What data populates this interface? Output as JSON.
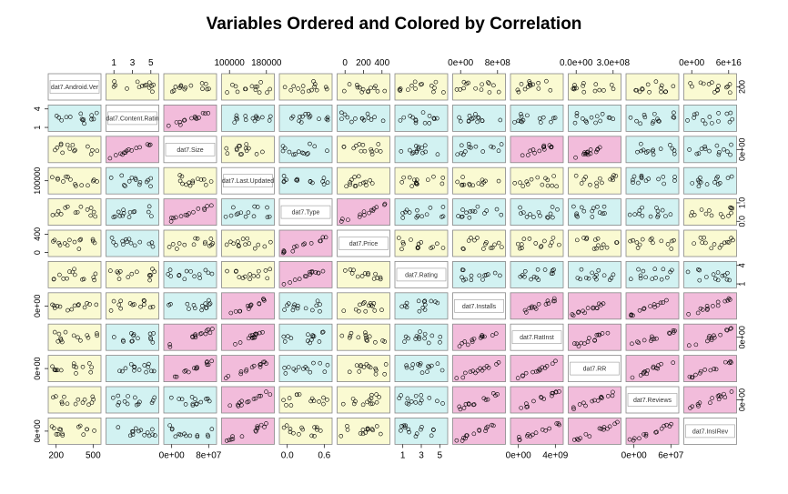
{
  "chart_data": {
    "type": "scatter",
    "subtype": "scatterplot-matrix",
    "title": "Variables Ordered and Colored by Correlation",
    "variables": [
      "dat7.Android.Ver",
      "dat7.Content.Ratin",
      "dat7.Size",
      "dat7.Last.Updated",
      "dat7.Type",
      "dat7.Price",
      "dat7.Rating",
      "dat7.Installs",
      "dat7.RatInst",
      "dat7.RR",
      "dat7.Reviews",
      "dat7.InsIRev"
    ],
    "colors": {
      "high": "#F2BCDB",
      "medium": "#D2F2F2",
      "low": "#FAFAD2"
    },
    "panel_colors": [
      [
        "diag",
        "low",
        "low",
        "low",
        "low",
        "low",
        "low",
        "low",
        "low",
        "low",
        "low",
        "low"
      ],
      [
        "medium",
        "diag",
        "high",
        "medium",
        "medium",
        "medium",
        "medium",
        "medium",
        "medium",
        "medium",
        "medium",
        "medium"
      ],
      [
        "low",
        "high",
        "diag",
        "low",
        "medium",
        "low",
        "medium",
        "medium",
        "high",
        "high",
        "medium",
        "medium"
      ],
      [
        "low",
        "medium",
        "low",
        "diag",
        "medium",
        "low",
        "low",
        "low",
        "low",
        "low",
        "medium",
        "medium"
      ],
      [
        "low",
        "medium",
        "high",
        "medium",
        "diag",
        "high",
        "medium",
        "medium",
        "medium",
        "medium",
        "medium",
        "low"
      ],
      [
        "low",
        "medium",
        "low",
        "low",
        "high",
        "diag",
        "low",
        "low",
        "low",
        "low",
        "low",
        "low"
      ],
      [
        "low",
        "low",
        "medium",
        "low",
        "high",
        "low",
        "diag",
        "medium",
        "medium",
        "medium",
        "medium",
        "medium"
      ],
      [
        "low",
        "low",
        "medium",
        "high",
        "medium",
        "low",
        "medium",
        "diag",
        "high",
        "high",
        "high",
        "high"
      ],
      [
        "low",
        "medium",
        "high",
        "high",
        "medium",
        "low",
        "medium",
        "high",
        "diag",
        "high",
        "high",
        "high"
      ],
      [
        "low",
        "medium",
        "high",
        "high",
        "medium",
        "low",
        "medium",
        "high",
        "high",
        "diag",
        "high",
        "high"
      ],
      [
        "low",
        "medium",
        "medium",
        "high",
        "low",
        "low",
        "medium",
        "high",
        "high",
        "high",
        "diag",
        "high"
      ],
      [
        "low",
        "medium",
        "medium",
        "high",
        "low",
        "low",
        "medium",
        "high",
        "high",
        "high",
        "high",
        "diag"
      ]
    ],
    "top_axis": [
      {
        "column": 1,
        "ticks": [
          "1",
          "3",
          "5"
        ]
      },
      {
        "column": 3,
        "ticks": [
          "100000",
          "180000"
        ]
      },
      {
        "column": 5,
        "ticks": [
          "0",
          "200",
          "400"
        ]
      },
      {
        "column": 7,
        "ticks": [
          "0e+00",
          "8e+08"
        ]
      },
      {
        "column": 9,
        "ticks": [
          "0.0e+00",
          "3.0e+08"
        ]
      },
      {
        "column": 11,
        "ticks": [
          "0e+00",
          "6e+16"
        ]
      }
    ],
    "bottom_axis": [
      {
        "column": 0,
        "ticks": [
          "200",
          "500"
        ]
      },
      {
        "column": 2,
        "ticks": [
          "0e+00",
          "8e+07"
        ]
      },
      {
        "column": 4,
        "ticks": [
          "0.0",
          "0.6"
        ]
      },
      {
        "column": 6,
        "ticks": [
          "1",
          "3",
          "5"
        ]
      },
      {
        "column": 8,
        "ticks": [
          "0e+00",
          "4e+09"
        ]
      },
      {
        "column": 10,
        "ticks": [
          "0e+00",
          "6e+07"
        ]
      }
    ],
    "left_axis": [
      {
        "row": 1,
        "ticks": [
          "1",
          "4"
        ]
      },
      {
        "row": 3,
        "ticks": [
          "100000"
        ]
      },
      {
        "row": 5,
        "ticks": [
          "0",
          "400"
        ]
      },
      {
        "row": 7,
        "ticks": [
          "0e+00"
        ]
      },
      {
        "row": 9,
        "ticks": [
          "0e+00"
        ]
      },
      {
        "row": 11,
        "ticks": [
          "0e+00"
        ]
      }
    ],
    "right_axis": [
      {
        "row": 0,
        "ticks": [
          "200"
        ]
      },
      {
        "row": 2,
        "ticks": [
          "0e+00"
        ]
      },
      {
        "row": 4,
        "ticks": [
          "0.0",
          "1.0"
        ]
      },
      {
        "row": 6,
        "ticks": [
          "1",
          "4"
        ]
      },
      {
        "row": 8,
        "ticks": [
          "0e+00"
        ]
      },
      {
        "row": 10,
        "ticks": [
          "0e+00"
        ]
      }
    ]
  }
}
